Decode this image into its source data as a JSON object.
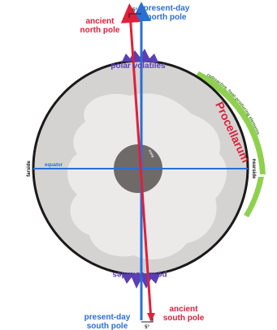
{
  "labels": {
    "ancient_north_l1": "ancient",
    "ancient_north_l2": "north pole",
    "present_north_l1": "present-day",
    "present_north_l2": "north pole",
    "angle_top": "5°",
    "angle_bottom": "5°",
    "polar_volatiles_top": "polar volatiles",
    "polar_volatiles_bottom": "polar volatiles",
    "radioactive": "radioactive, heat-producing elements",
    "procellarum": "Procellarum",
    "equator": "equator",
    "core": "core",
    "farside": "farside",
    "nearside": "nearside",
    "present_south_l1": "present-day",
    "present_south_l2": "south pole",
    "ancient_south_l1": "ancient",
    "ancient_south_l2": "south pole"
  },
  "colors": {
    "ancient_axis": "#e0203a",
    "present_axis": "#2a6fd6",
    "polar_volatiles": "#5b3fb5",
    "radioactive_layer": "#8fd14f",
    "crust": "#d9d8d6",
    "mantle_light": "#ecebea",
    "core": "#6e6a68"
  }
}
